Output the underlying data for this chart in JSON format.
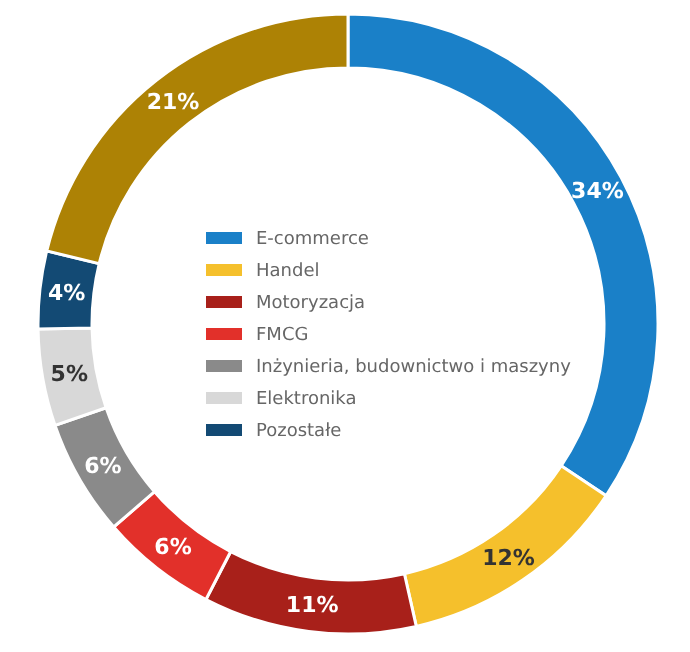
{
  "chart_data": {
    "type": "donut",
    "categories": [
      "E-commerce",
      "Handel",
      "Motoryzacja",
      "FMCG",
      "Inżynieria, budownictwo i maszyny",
      "Elektronika",
      "Pozostałe",
      null
    ],
    "values": [
      34,
      12,
      11,
      6,
      6,
      5,
      4,
      21
    ],
    "value_labels": [
      "34%",
      "12%",
      "11%",
      "6%",
      "6%",
      "5%",
      "4%",
      "21%"
    ],
    "colors": [
      "#1a80c8",
      "#f5c02c",
      "#a8201a",
      "#e2302a",
      "#8a8a8a",
      "#d8d8d8",
      "#134a74",
      "#ad8205"
    ],
    "legend": "center"
  }
}
